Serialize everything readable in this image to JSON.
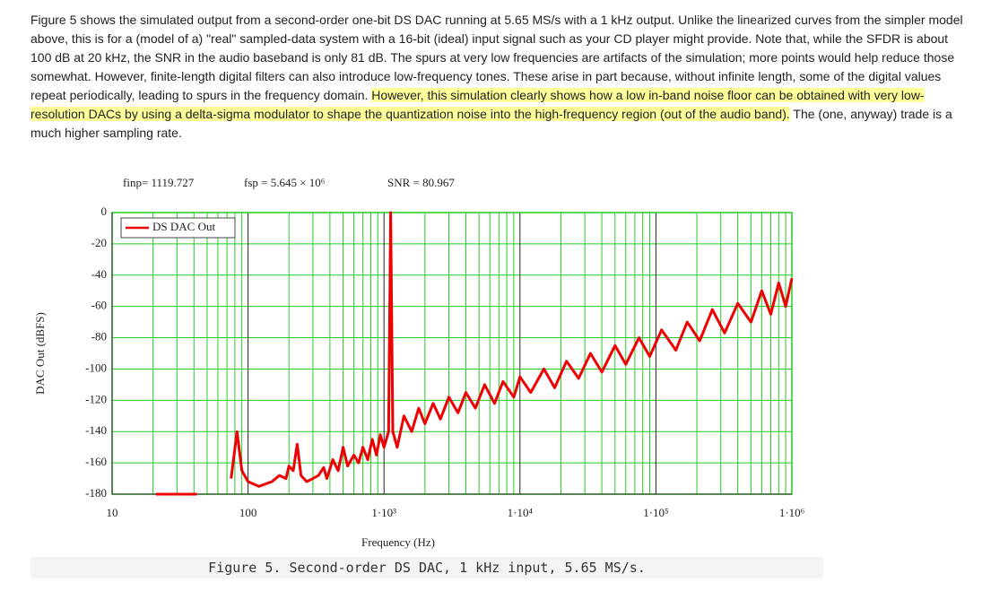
{
  "paragraph": {
    "text": "Figure 5 shows the simulated output from a second-order one-bit DS DAC running at 5.65 MS/s with a 1 kHz output. Unlike the linearized curves from the simpler model above, this is for a (model of a) \"real\" sampled-data system with a 16-bit (ideal) input signal such as your CD player might provide. Note that, while the SFDR is about 100 dB at 20 kHz, the SNR in the audio baseband is only 81 dB. The spurs at very low frequencies are artifacts of the simulation; more points would help reduce those somewhat. However, finite-length digital filters can also introduce low-frequency tones. These arise in part because, without infinite length, some of the digital values repeat periodically, leading to spurs in the frequency domain. ",
    "highlight": "However, this simulation clearly shows how a low in-band noise floor can be obtained with very low-resolution DACs by using a delta-sigma modulator to shape the quantization noise into the high-frequency region (out of the audio band).",
    "text_after": " The (one, anyway) trade is a much higher sampling rate."
  },
  "caption": "Figure 5. Second-order DS DAC, 1 kHz input, 5.65 MS/s.",
  "chart_data": {
    "type": "line",
    "annotations": [
      "finp= 1119.727",
      "fsp = 5.645 × 10⁶",
      "SNR = 80.967"
    ],
    "x_label": "Frequency (Hz)",
    "y_label": "DAC Out (dBFS)",
    "xlim": [
      10,
      1000000
    ],
    "ylim": [
      -180,
      0
    ],
    "log_x": true,
    "grid": true,
    "minor_grid": true,
    "grid_color": "#22cc22",
    "legend": "upper left",
    "xticks": [
      {
        "value": 10,
        "label": "10"
      },
      {
        "value": 100,
        "label": "100"
      },
      {
        "value": 1000,
        "label": "1·10³"
      },
      {
        "value": 10000,
        "label": "1·10⁴"
      },
      {
        "value": 100000,
        "label": "1·10⁵"
      },
      {
        "value": 1000000,
        "label": "1·10⁶"
      }
    ],
    "yticks": [
      0,
      -20,
      -40,
      -60,
      -80,
      -100,
      -120,
      -140,
      -160,
      -180
    ],
    "x": [
      21,
      42,
      null,
      75,
      83,
      90,
      100,
      120,
      150,
      170,
      190,
      200,
      215,
      230,
      245,
      270,
      300,
      330,
      360,
      380,
      420,
      460,
      500,
      540,
      600,
      650,
      700,
      760,
      820,
      880,
      940,
      1000,
      1080,
      1119.727,
      1160,
      1250,
      1400,
      1600,
      1800,
      2000,
      2300,
      2600,
      3000,
      3500,
      4000,
      4700,
      5500,
      6500,
      7500,
      9000,
      10000,
      12000,
      15000,
      18000,
      22000,
      27000,
      33000,
      40000,
      50000,
      60000,
      75000,
      90000,
      110000,
      140000,
      170000,
      210000,
      260000,
      320000,
      400000,
      500000,
      600000,
      700000,
      800000,
      900000,
      1000000
    ],
    "series": [
      {
        "name": "DS DAC Out",
        "color": "#ee0000",
        "values": [
          -180,
          -180,
          null,
          -170,
          -140,
          -165,
          -172,
          -175,
          -172,
          -168,
          -170,
          -162,
          -165,
          -148,
          -168,
          -172,
          -170,
          -168,
          -163,
          -170,
          -158,
          -165,
          -150,
          -162,
          -155,
          -160,
          -150,
          -158,
          -145,
          -155,
          -142,
          -150,
          -140,
          0,
          -140,
          -150,
          -130,
          -140,
          -125,
          -135,
          -122,
          -132,
          -118,
          -128,
          -115,
          -125,
          -110,
          -122,
          -108,
          -118,
          -105,
          -115,
          -100,
          -112,
          -95,
          -106,
          -90,
          -102,
          -85,
          -97,
          -80,
          -92,
          -75,
          -88,
          -70,
          -82,
          -62,
          -77,
          -58,
          -70,
          -50,
          -65,
          -45,
          -60,
          -42
        ]
      }
    ]
  }
}
